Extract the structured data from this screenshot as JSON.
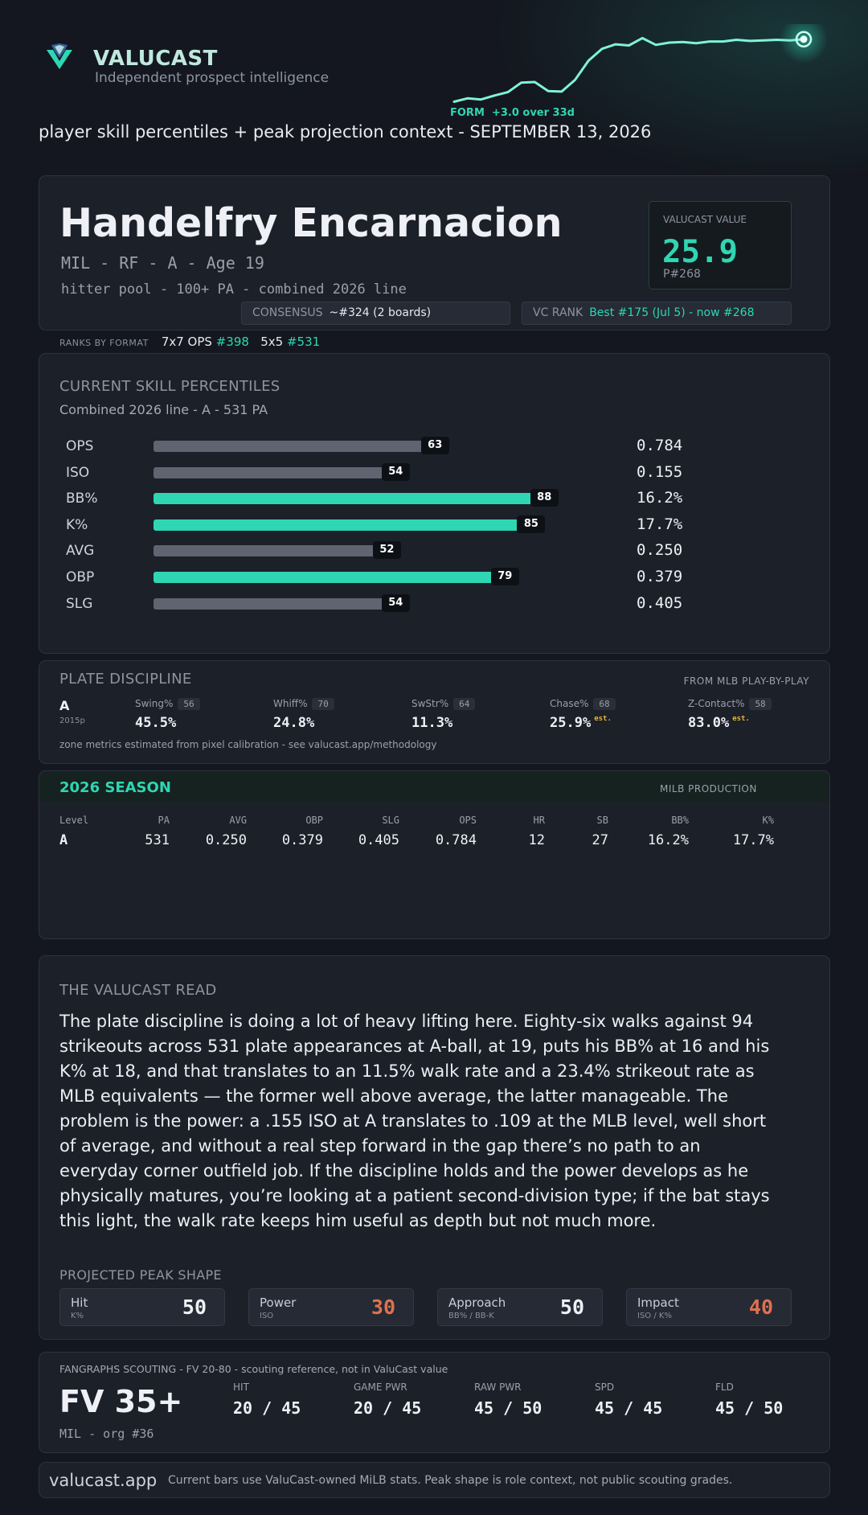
{
  "brand": {
    "name": "VALUCAST",
    "tagline": "Independent prospect intelligence",
    "accent": "#2fd6b3"
  },
  "form": {
    "label": "FORM",
    "delta": "+3.0 over 33d",
    "spark": [
      0.5,
      1.1,
      0.9,
      1.6,
      2.2,
      3.9,
      4.0,
      2.4,
      2.3,
      4.4,
      7.8,
      9.9,
      10.7,
      10.5,
      11.8,
      10.6,
      11.0,
      11.1,
      10.9,
      11.2,
      11.2,
      11.5,
      11.3,
      11.4,
      11.5,
      11.4,
      11.6
    ]
  },
  "subtitle": "player skill percentiles + peak projection context - SEPTEMBER 13, 2026",
  "player": {
    "name": "Handelfry Encarnacion",
    "meta": "MIL - RF - A - Age 19",
    "pool": "hitter pool - 100+ PA - combined 2026 line",
    "value_label": "VALUCAST VALUE",
    "value": "25.9",
    "value_rank": "P#268",
    "consensus_label": "CONSENSUS",
    "consensus_value": "~#324 (2 boards)",
    "vc_rank_label": "VC RANK",
    "vc_rank_value": "Best #175 (Jul 5) - now #268"
  },
  "ranks_by_format": {
    "label": "RANKS BY FORMAT",
    "f1_label": "7x7 OPS",
    "f1_rank": "#398",
    "f2_label": "5x5",
    "f2_rank": "#531"
  },
  "skills": {
    "title": "CURRENT SKILL PERCENTILES",
    "subtitle": "Combined 2026 line - A - 531 PA",
    "rows": [
      {
        "name": "OPS",
        "pct": 63,
        "value": "0.784",
        "highlight": false
      },
      {
        "name": "ISO",
        "pct": 54,
        "value": "0.155",
        "highlight": false
      },
      {
        "name": "BB%",
        "pct": 88,
        "value": "16.2%",
        "highlight": true
      },
      {
        "name": "K%",
        "pct": 85,
        "value": "17.7%",
        "highlight": true
      },
      {
        "name": "AVG",
        "pct": 52,
        "value": "0.250",
        "highlight": false
      },
      {
        "name": "OBP",
        "pct": 79,
        "value": "0.379",
        "highlight": true
      },
      {
        "name": "SLG",
        "pct": 54,
        "value": "0.405",
        "highlight": false
      }
    ]
  },
  "plate_discipline": {
    "title": "PLATE DISCIPLINE",
    "source": "FROM MLB PLAY-BY-PLAY",
    "level": "A",
    "level_sub": "2015p",
    "metrics": [
      {
        "name": "Swing%",
        "pct": "56",
        "value": "45.5%",
        "est": ""
      },
      {
        "name": "Whiff%",
        "pct": "70",
        "value": "24.8%",
        "est": ""
      },
      {
        "name": "SwStr%",
        "pct": "64",
        "value": "11.3%",
        "est": ""
      },
      {
        "name": "Chase%",
        "pct": "68",
        "value": "25.9%",
        "est": "est."
      },
      {
        "name": "Z-Contact%",
        "pct": "58",
        "value": "83.0%",
        "est": "est."
      }
    ],
    "footnote": "zone metrics estimated from pixel calibration - see valucast.app/methodology"
  },
  "season": {
    "title": "2026 SEASON",
    "tag": "MILB PRODUCTION",
    "headers": [
      "Level",
      "PA",
      "AVG",
      "OBP",
      "SLG",
      "OPS",
      "HR",
      "SB",
      "BB%",
      "K%"
    ],
    "row": [
      "A",
      "531",
      "0.250",
      "0.379",
      "0.405",
      "0.784",
      "12",
      "27",
      "16.2%",
      "17.7%"
    ]
  },
  "read": {
    "title": "THE VALUCAST READ",
    "body": "The plate discipline is doing a lot of heavy lifting here. Eighty-six walks against 94 strikeouts across 531 plate appearances at A-ball, at 19, puts his BB% at 16 and his K% at 18, and that translates to an 11.5% walk rate and a 23.4% strikeout rate as MLB equivalents — the former well above average, the latter manageable. The problem is the power: a .155 ISO at A translates to .109 at the MLB level, well short of average, and without a real step forward in the gap there’s no path to an everyday corner outfield job. If the discipline holds and the power develops as he physically matures, you’re looking at a patient second-division type; if the bat stays this light, the walk rate keeps him useful as depth but not much more.",
    "shape_title": "PROJECTED PEAK SHAPE",
    "shape": [
      {
        "name": "Hit",
        "sub": "K%",
        "grade": "50",
        "color": "#eef0f5"
      },
      {
        "name": "Power",
        "sub": "ISO",
        "grade": "30",
        "color": "#e0714f"
      },
      {
        "name": "Approach",
        "sub": "BB% / BB-K",
        "grade": "50",
        "color": "#eef0f5"
      },
      {
        "name": "Impact",
        "sub": "ISO / K%",
        "grade": "40",
        "color": "#e0714f"
      }
    ]
  },
  "fangraphs": {
    "title": "FANGRAPHS SCOUTING - FV 20-80 - scouting reference, not in ValuCast value",
    "fv": "FV 35+",
    "org": "MIL - org #36",
    "tools": [
      {
        "name": "HIT",
        "value": "20 / 45"
      },
      {
        "name": "GAME PWR",
        "value": "20 / 45"
      },
      {
        "name": "RAW PWR",
        "value": "45 / 50"
      },
      {
        "name": "SPD",
        "value": "45 / 45"
      },
      {
        "name": "FLD",
        "value": "45 / 50"
      }
    ]
  },
  "footer": {
    "site": "valucast.app",
    "note": "Current bars use ValuCast-owned MiLB stats. Peak shape is role context, not public scouting grades."
  }
}
